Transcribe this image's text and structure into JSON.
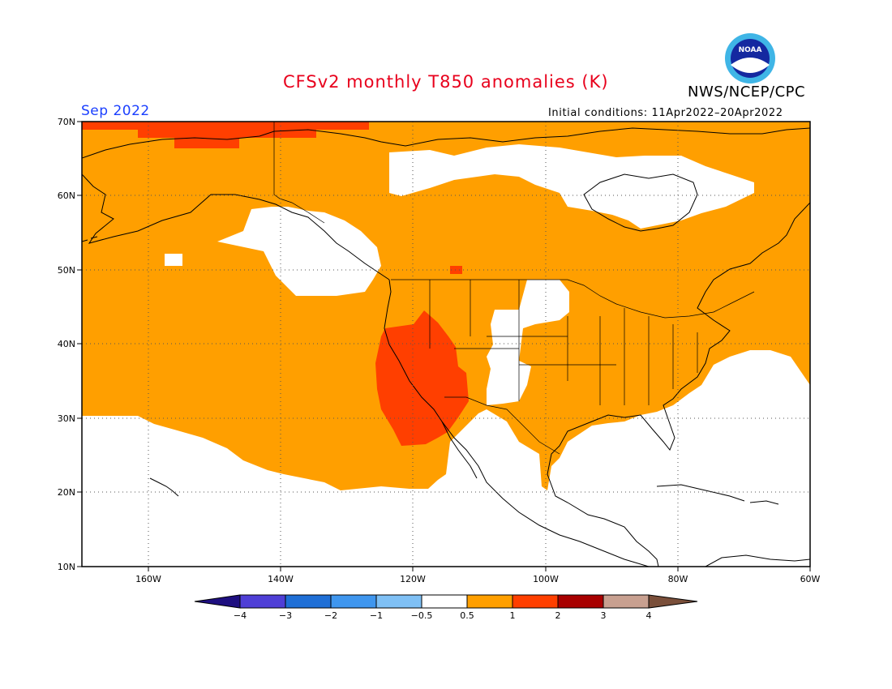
{
  "title": "CFSv2 monthly T850 anomalies (K)",
  "organization": "NWS/NCEP/CPC",
  "valid_month": "Sep 2022",
  "initial_conditions": "Initial conditions: 11Apr2022–20Apr2022",
  "logo": {
    "text": "NOAA",
    "icon": "noaa-logo-icon",
    "colors": {
      "outer": "#3fb5e6",
      "inner": "#1428a0",
      "bird": "#ffffff"
    }
  },
  "axes": {
    "lat_labels": [
      "70N",
      "60N",
      "50N",
      "40N",
      "30N",
      "20N",
      "10N"
    ],
    "lon_labels": [
      "160W",
      "140W",
      "120W",
      "100W",
      "80W",
      "60W"
    ],
    "lat_range": [
      10,
      70
    ],
    "lon_range": [
      -170,
      -60
    ],
    "grid": "dotted"
  },
  "colorbar": {
    "labels": [
      "−4",
      "−3",
      "−2",
      "−1",
      "−0.5",
      "0.5",
      "1",
      "2",
      "3",
      "4"
    ],
    "colors": [
      "#1e0f80",
      "#4f3fd6",
      "#1f6fd6",
      "#3f96ee",
      "#7fc0f5",
      "#ffffff",
      "#ff9f00",
      "#ff3f00",
      "#a80000",
      "#c8a090",
      "#7a4f3a"
    ]
  },
  "fill_colors": {
    "warm1": "#ff9f00",
    "warm2": "#ff3f00",
    "neutral": "#ffffff"
  }
}
